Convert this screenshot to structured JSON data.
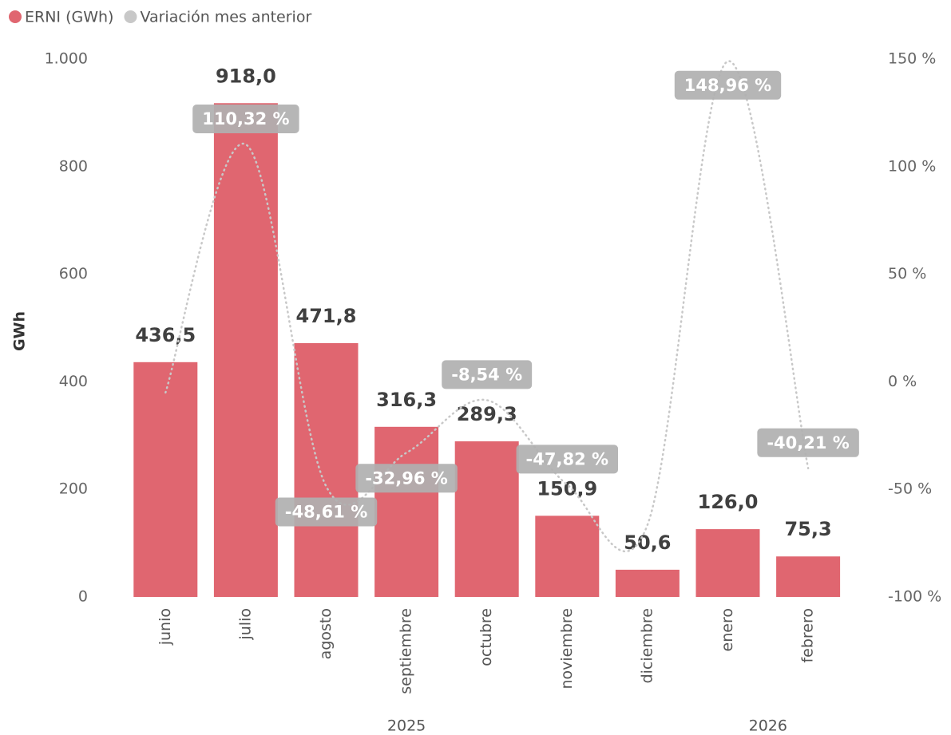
{
  "chart_data": {
    "type": "bar_line",
    "legend": [
      "ERNI (GWh)",
      "Variación mes anterior"
    ],
    "y_label": "GWh",
    "categories": [
      "junio",
      "julio",
      "agosto",
      "septiembre",
      "octubre",
      "noviembre",
      "diciembre",
      "enero",
      "febrero"
    ],
    "x_groups": [
      {
        "label": "2025",
        "span": 7
      },
      {
        "label": "2026",
        "span": 2
      }
    ],
    "series": [
      {
        "name": "ERNI (GWh)",
        "color": "#e06670",
        "values": [
          436.5,
          918.0,
          471.8,
          316.3,
          289.3,
          150.9,
          50.6,
          126.0,
          75.3
        ],
        "value_labels": [
          "436,5",
          "918,0",
          "471,8",
          "316,3",
          "289,3",
          "150,9",
          "50,6",
          "126,0",
          "75,3"
        ]
      },
      {
        "name": "Variación mes anterior",
        "color": "#c8c8c8",
        "axis": "y2",
        "values": [
          -5,
          110.32,
          -48.61,
          -32.96,
          -8.54,
          -47.82,
          -66.47,
          148.96,
          -40.21
        ],
        "value_labels": [
          null,
          "110,32 %",
          "-48,61 %",
          "-32,96 %",
          "-8,54 %",
          "-47,82 %",
          null,
          "148,96 %",
          "-40,21 %"
        ]
      }
    ],
    "ylim": [
      0,
      1000
    ],
    "yticks": [
      0,
      200,
      400,
      600,
      800,
      {
        "value": 1000,
        "label": "1.000"
      }
    ],
    "y2lim": [
      -100,
      150
    ],
    "y2ticks": [
      {
        "value": -100,
        "label": "-100 %"
      },
      {
        "value": -50,
        "label": "-50 %"
      },
      {
        "value": 0,
        "label": "0 %"
      },
      {
        "value": 50,
        "label": "50 %"
      },
      {
        "value": 100,
        "label": "100 %"
      },
      {
        "value": 150,
        "label": "150 %"
      }
    ]
  }
}
